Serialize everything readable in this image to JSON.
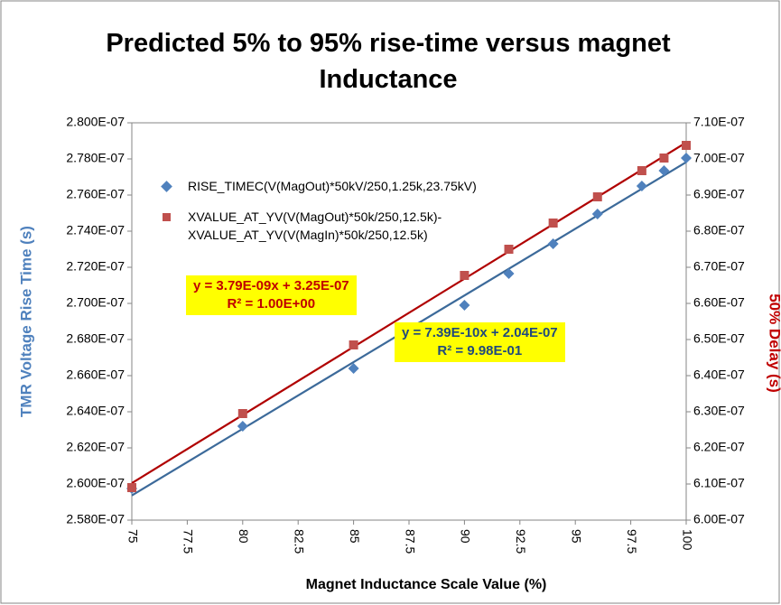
{
  "chart_data": {
    "type": "scatter",
    "title": "Predicted 5% to 95% rise-time versus magnet Inductance",
    "x_label": "Magnet Inductance Scale Value (%)",
    "y_label": "TMR Voltage Rise Time (s)",
    "y2_label": "50% Delay (s)",
    "xlim": [
      75,
      100
    ],
    "xticks": [
      75,
      77.5,
      80,
      82.5,
      85,
      87.5,
      90,
      92.5,
      95,
      97.5,
      100
    ],
    "ylim": [
      2.58e-07,
      2.8e-07
    ],
    "yticks": [
      {
        "value": 2.58e-07,
        "label": "2.580E-07"
      },
      {
        "value": 2.6e-07,
        "label": "2.600E-07"
      },
      {
        "value": 2.62e-07,
        "label": "2.620E-07"
      },
      {
        "value": 2.64e-07,
        "label": "2.640E-07"
      },
      {
        "value": 2.66e-07,
        "label": "2.660E-07"
      },
      {
        "value": 2.68e-07,
        "label": "2.680E-07"
      },
      {
        "value": 2.7e-07,
        "label": "2.700E-07"
      },
      {
        "value": 2.72e-07,
        "label": "2.720E-07"
      },
      {
        "value": 2.74e-07,
        "label": "2.740E-07"
      },
      {
        "value": 2.76e-07,
        "label": "2.760E-07"
      },
      {
        "value": 2.78e-07,
        "label": "2.780E-07"
      },
      {
        "value": 2.8e-07,
        "label": "2.800E-07"
      }
    ],
    "y2lim": [
      6e-07,
      7.1e-07
    ],
    "y2ticks": [
      {
        "value": 6e-07,
        "label": "6.00E-07"
      },
      {
        "value": 6.1e-07,
        "label": "6.10E-07"
      },
      {
        "value": 6.2e-07,
        "label": "6.20E-07"
      },
      {
        "value": 6.3e-07,
        "label": "6.30E-07"
      },
      {
        "value": 6.4e-07,
        "label": "6.40E-07"
      },
      {
        "value": 6.5e-07,
        "label": "6.50E-07"
      },
      {
        "value": 6.6e-07,
        "label": "6.60E-07"
      },
      {
        "value": 6.7e-07,
        "label": "6.70E-07"
      },
      {
        "value": 6.8e-07,
        "label": "6.80E-07"
      },
      {
        "value": 6.9e-07,
        "label": "6.90E-07"
      },
      {
        "value": 7e-07,
        "label": "7.00E-07"
      },
      {
        "value": 7.1e-07,
        "label": "7.10E-07"
      }
    ],
    "grid": false,
    "legend": "upper left",
    "series": [
      {
        "name": "RISE_TIMEC(V(MagOut)*50kV/250,1.25k,23.75kV)",
        "color": "#4f81bd",
        "line_color": "#3c6a9a",
        "marker": "diamond",
        "x": [
          75,
          80,
          85,
          90,
          92,
          94,
          96,
          98,
          99,
          100
        ],
        "values": [
          2.5975e-07,
          2.632e-07,
          2.664e-07,
          2.699e-07,
          2.7165e-07,
          2.733e-07,
          2.7495e-07,
          2.765e-07,
          2.7735e-07,
          2.7805e-07
        ]
      },
      {
        "name": "XVALUE_AT_YV(V(MagOut)*50k/250,12.5k)-XVALUE_AT_YV(V(MagIn)*50k/250,12.5k)",
        "color": "#c0504d",
        "line_color": "#b00000",
        "marker": "square",
        "axis": "y2",
        "x": [
          75,
          80,
          85,
          90,
          92,
          94,
          96,
          98,
          99,
          100
        ],
        "values": [
          6.09e-07,
          6.295e-07,
          6.485e-07,
          6.6775e-07,
          6.75e-07,
          6.8225e-07,
          6.895e-07,
          6.9675e-07,
          7.0025e-07,
          7.0375e-07
        ]
      }
    ],
    "annotations": [
      {
        "equation": "y = 3.79E-09x + 3.25E-07",
        "r2": "R² = 1.00E+00",
        "color": "#c00000"
      },
      {
        "equation": "y = 7.39E-10x  + 2.04E-07",
        "r2": "R² = 9.98E-01",
        "color": "#1f497d"
      }
    ]
  }
}
